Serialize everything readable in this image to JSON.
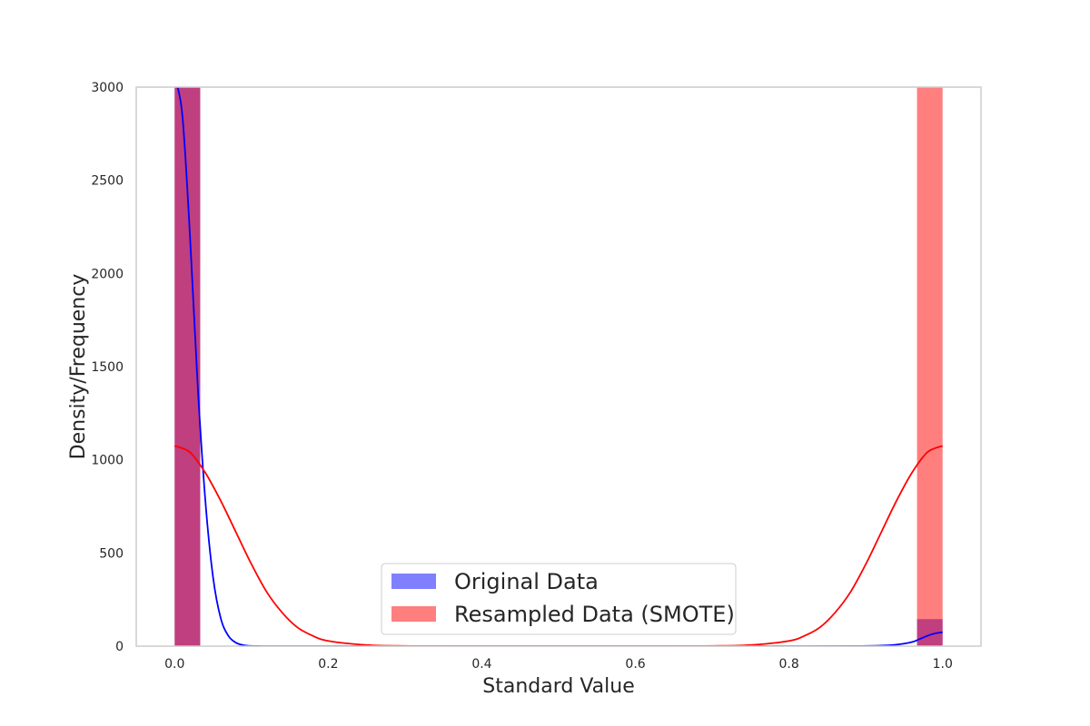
{
  "chart_data": {
    "type": "bar",
    "title": "",
    "xlabel": "Standard Value",
    "ylabel": "Density/Frequency",
    "xlim": [
      -0.05,
      1.05
    ],
    "ylim": [
      0,
      3000
    ],
    "xticks": [
      0.0,
      0.2,
      0.4,
      0.6,
      0.8,
      1.0
    ],
    "xtick_labels": [
      "0.0",
      "0.2",
      "0.4",
      "0.6",
      "0.8",
      "1.0"
    ],
    "yticks": [
      0,
      500,
      1000,
      1500,
      2000,
      2500,
      3000
    ],
    "ytick_labels": [
      "0",
      "500",
      "1000",
      "1500",
      "2000",
      "2500",
      "3000"
    ],
    "grid": false,
    "legend_position": "lower center",
    "colors": {
      "original": "#0000ff",
      "resampled": "#ff0000",
      "overlap": "#c0407c",
      "axes_edge": "#cccccc"
    },
    "series": [
      {
        "name": "Original Data",
        "kind": "histogram",
        "color": "#0000ff",
        "alpha": 0.5,
        "bins": [
          {
            "x0": 0.0,
            "x1": 0.0333,
            "count": 3000
          },
          {
            "x0": 0.9667,
            "x1": 1.0,
            "count": 145
          }
        ],
        "kde": {
          "color": "#0000ff",
          "x": [
            0.0,
            0.01,
            0.02,
            0.03,
            0.04,
            0.05,
            0.06,
            0.07,
            0.08,
            0.09,
            0.1,
            0.11,
            0.12,
            0.14,
            0.16,
            0.2,
            0.4,
            0.6,
            0.8,
            0.88,
            0.9,
            0.92,
            0.94,
            0.96,
            0.97,
            0.98,
            0.99,
            1.0
          ],
          "y": [
            3050,
            2850,
            2200,
            1400,
            780,
            370,
            150,
            55,
            18,
            5,
            1,
            0.2,
            0.05,
            0,
            0,
            0,
            0,
            0,
            0,
            0.2,
            1,
            3,
            8,
            22,
            38,
            55,
            68,
            75
          ]
        }
      },
      {
        "name": "Resampled Data (SMOTE)",
        "kind": "histogram",
        "color": "#ff0000",
        "alpha": 0.5,
        "bins": [
          {
            "x0": 0.0,
            "x1": 0.0333,
            "count": 3000
          },
          {
            "x0": 0.9667,
            "x1": 1.0,
            "count": 3000
          }
        ],
        "kde": {
          "color": "#ff0000",
          "x": [
            0.0,
            0.02,
            0.04,
            0.06,
            0.08,
            0.1,
            0.12,
            0.14,
            0.16,
            0.18,
            0.2,
            0.25,
            0.3,
            0.35,
            0.4,
            0.5,
            0.6,
            0.65,
            0.7,
            0.75,
            0.8,
            0.82,
            0.84,
            0.86,
            0.88,
            0.9,
            0.92,
            0.94,
            0.96,
            0.98,
            1.0
          ],
          "y": [
            1075,
            1040,
            930,
            780,
            610,
            440,
            290,
            180,
            100,
            55,
            28,
            6,
            1,
            0.2,
            0,
            0,
            0,
            0.2,
            1,
            6,
            28,
            55,
            100,
            180,
            290,
            440,
            610,
            780,
            930,
            1040,
            1075
          ]
        }
      }
    ]
  }
}
